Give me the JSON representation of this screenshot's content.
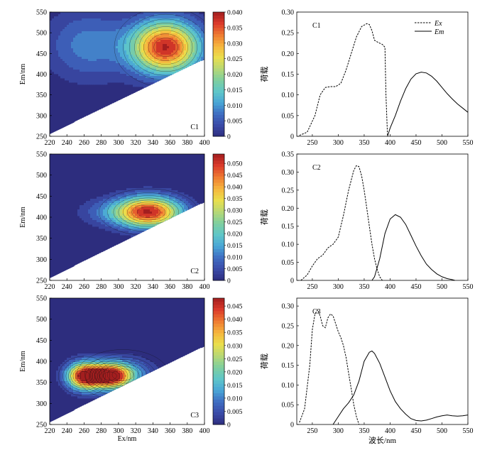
{
  "figure": {
    "common": {
      "ex_axis_label": "Ex/nm",
      "em_axis_label": "Em/nm",
      "loading_label": "荷载",
      "wavelength_label": "波长/nm",
      "legend_ex": "Ex",
      "legend_em": "Em",
      "contour_xticks": [
        "220",
        "240",
        "260",
        "280",
        "300",
        "320",
        "340",
        "360",
        "380",
        "400"
      ],
      "contour_yticks": [
        "250",
        "300",
        "350",
        "400",
        "450",
        "500",
        "550"
      ],
      "line_xticks": [
        "250",
        "300",
        "350",
        "400",
        "450",
        "500",
        "550"
      ]
    },
    "colors": {
      "background": "#2d2d7e",
      "scale": [
        "#2d2d7e",
        "#3b4ba8",
        "#3f6dc2",
        "#49a6d6",
        "#5fc6c8",
        "#7fcf9e",
        "#b7d875",
        "#eadf4c",
        "#f6b63e",
        "#ee7b31",
        "#dc3b2b",
        "#a31e1f"
      ],
      "contour_line": "#111111",
      "line": "#000000"
    }
  },
  "chart_data": [
    {
      "type": "heatmap",
      "component": "C1",
      "xlabel": "Ex/nm",
      "ylabel": "Em/nm",
      "xlim": [
        220,
        400
      ],
      "ylim": [
        250,
        550
      ],
      "colorbar_max": 0.04,
      "colorbar_ticks": [
        "0",
        "0.005",
        "0.010",
        "0.015",
        "0.020",
        "0.025",
        "0.030",
        "0.035",
        "0.040"
      ],
      "peaks": [
        {
          "ex": 355,
          "em": 465,
          "amp": 0.04,
          "sx": 28,
          "sy": 45
        },
        {
          "ex": 265,
          "em": 470,
          "amp": 0.01,
          "sx": 35,
          "sy": 60
        }
      ]
    },
    {
      "type": "line",
      "component": "C1",
      "ylabel": "荷载",
      "xlim": [
        220,
        550
      ],
      "ylim": [
        0,
        0.3
      ],
      "yticks": [
        "0",
        "0.05",
        "0.10",
        "0.15",
        "0.20",
        "0.25",
        "0.30"
      ],
      "series": [
        {
          "name": "Ex",
          "style": "dashed",
          "x": [
            225,
            240,
            255,
            265,
            275,
            285,
            295,
            305,
            315,
            325,
            335,
            345,
            355,
            360,
            365,
            370,
            375,
            380,
            385,
            390,
            392,
            395
          ],
          "y": [
            0.002,
            0.01,
            0.05,
            0.1,
            0.118,
            0.12,
            0.12,
            0.128,
            0.16,
            0.2,
            0.24,
            0.265,
            0.272,
            0.27,
            0.255,
            0.232,
            0.228,
            0.225,
            0.222,
            0.215,
            0.1,
            0.0
          ]
        },
        {
          "name": "Em",
          "style": "solid",
          "x": [
            395,
            400,
            410,
            420,
            430,
            440,
            450,
            460,
            470,
            480,
            490,
            500,
            510,
            520,
            530,
            540,
            550
          ],
          "y": [
            0.0,
            0.02,
            0.05,
            0.085,
            0.115,
            0.138,
            0.151,
            0.155,
            0.153,
            0.145,
            0.133,
            0.118,
            0.103,
            0.09,
            0.078,
            0.068,
            0.058
          ]
        }
      ]
    },
    {
      "type": "heatmap",
      "component": "C2",
      "xlabel": "Ex/nm",
      "ylabel": "Em/nm",
      "xlim": [
        220,
        400
      ],
      "ylim": [
        250,
        550
      ],
      "colorbar_max": 0.054,
      "colorbar_ticks": [
        "0",
        "0.005",
        "0.010",
        "0.015",
        "0.020",
        "0.025",
        "0.030",
        "0.035",
        "0.040",
        "0.045",
        "0.050"
      ],
      "peaks": [
        {
          "ex": 335,
          "em": 412,
          "amp": 0.054,
          "sx": 27,
          "sy": 26
        },
        {
          "ex": 285,
          "em": 412,
          "amp": 0.008,
          "sx": 25,
          "sy": 22
        }
      ]
    },
    {
      "type": "line",
      "component": "C2",
      "ylabel": "荷载",
      "xlim": [
        220,
        550
      ],
      "ylim": [
        0,
        0.35
      ],
      "yticks": [
        "0",
        "0.05",
        "0.10",
        "0.15",
        "0.20",
        "0.25",
        "0.30",
        "0.35"
      ],
      "series": [
        {
          "name": "Ex",
          "style": "dashed",
          "x": [
            228,
            240,
            250,
            260,
            270,
            280,
            290,
            300,
            310,
            320,
            330,
            335,
            340,
            345,
            350,
            355,
            360,
            365,
            370,
            375,
            380,
            385
          ],
          "y": [
            0.0,
            0.015,
            0.04,
            0.06,
            0.07,
            0.09,
            0.1,
            0.12,
            0.18,
            0.25,
            0.305,
            0.318,
            0.315,
            0.29,
            0.25,
            0.2,
            0.15,
            0.1,
            0.06,
            0.03,
            0.01,
            0.0
          ]
        },
        {
          "name": "Em",
          "style": "solid",
          "x": [
            365,
            370,
            380,
            390,
            400,
            410,
            420,
            430,
            440,
            450,
            460,
            470,
            480,
            490,
            500,
            510,
            520,
            525
          ],
          "y": [
            0.0,
            0.01,
            0.06,
            0.13,
            0.17,
            0.182,
            0.175,
            0.155,
            0.125,
            0.095,
            0.068,
            0.045,
            0.03,
            0.018,
            0.01,
            0.005,
            0.002,
            0.0
          ]
        }
      ]
    },
    {
      "type": "heatmap",
      "component": "C3",
      "xlabel": "Ex/nm",
      "ylabel": "Em/nm",
      "xlim": [
        220,
        400
      ],
      "ylim": [
        250,
        550
      ],
      "colorbar_max": 0.048,
      "colorbar_ticks": [
        "0",
        "0.005",
        "0.010",
        "0.015",
        "0.020",
        "0.025",
        "0.030",
        "0.035",
        "0.040",
        "0.045"
      ],
      "peaks": [
        {
          "ex": 260,
          "em": 365,
          "amp": 0.048,
          "sx": 14,
          "sy": 22
        },
        {
          "ex": 290,
          "em": 365,
          "amp": 0.044,
          "sx": 16,
          "sy": 20
        },
        {
          "ex": 305,
          "em": 368,
          "amp": 0.015,
          "sx": 25,
          "sy": 28
        },
        {
          "ex": 275,
          "em": 525,
          "amp": 0.0015,
          "sx": 25,
          "sy": 15
        }
      ]
    },
    {
      "type": "line",
      "component": "C3",
      "ylabel": "荷载",
      "xlabel": "波长/nm",
      "xlim": [
        220,
        550
      ],
      "ylim": [
        0,
        0.32
      ],
      "yticks": [
        "0",
        "0.05",
        "0.10",
        "0.15",
        "0.20",
        "0.25",
        "0.30"
      ],
      "series": [
        {
          "name": "Ex",
          "style": "dashed",
          "x": [
            225,
            235,
            245,
            250,
            255,
            260,
            265,
            270,
            275,
            280,
            285,
            290,
            295,
            300,
            305,
            310,
            315,
            320,
            325,
            330,
            335,
            340
          ],
          "y": [
            0.005,
            0.04,
            0.15,
            0.24,
            0.28,
            0.29,
            0.275,
            0.25,
            0.245,
            0.27,
            0.28,
            0.275,
            0.255,
            0.235,
            0.22,
            0.2,
            0.17,
            0.13,
            0.09,
            0.05,
            0.02,
            0.0
          ]
        },
        {
          "name": "Em",
          "style": "solid",
          "x": [
            290,
            300,
            310,
            320,
            330,
            340,
            350,
            360,
            365,
            370,
            380,
            390,
            400,
            410,
            420,
            430,
            440,
            450,
            460,
            470,
            480,
            490,
            500,
            510,
            520,
            530,
            540,
            550
          ],
          "y": [
            0.0,
            0.02,
            0.04,
            0.055,
            0.075,
            0.11,
            0.16,
            0.183,
            0.186,
            0.18,
            0.155,
            0.12,
            0.085,
            0.058,
            0.04,
            0.026,
            0.015,
            0.01,
            0.009,
            0.011,
            0.015,
            0.019,
            0.022,
            0.024,
            0.022,
            0.021,
            0.022,
            0.024
          ]
        }
      ]
    }
  ]
}
